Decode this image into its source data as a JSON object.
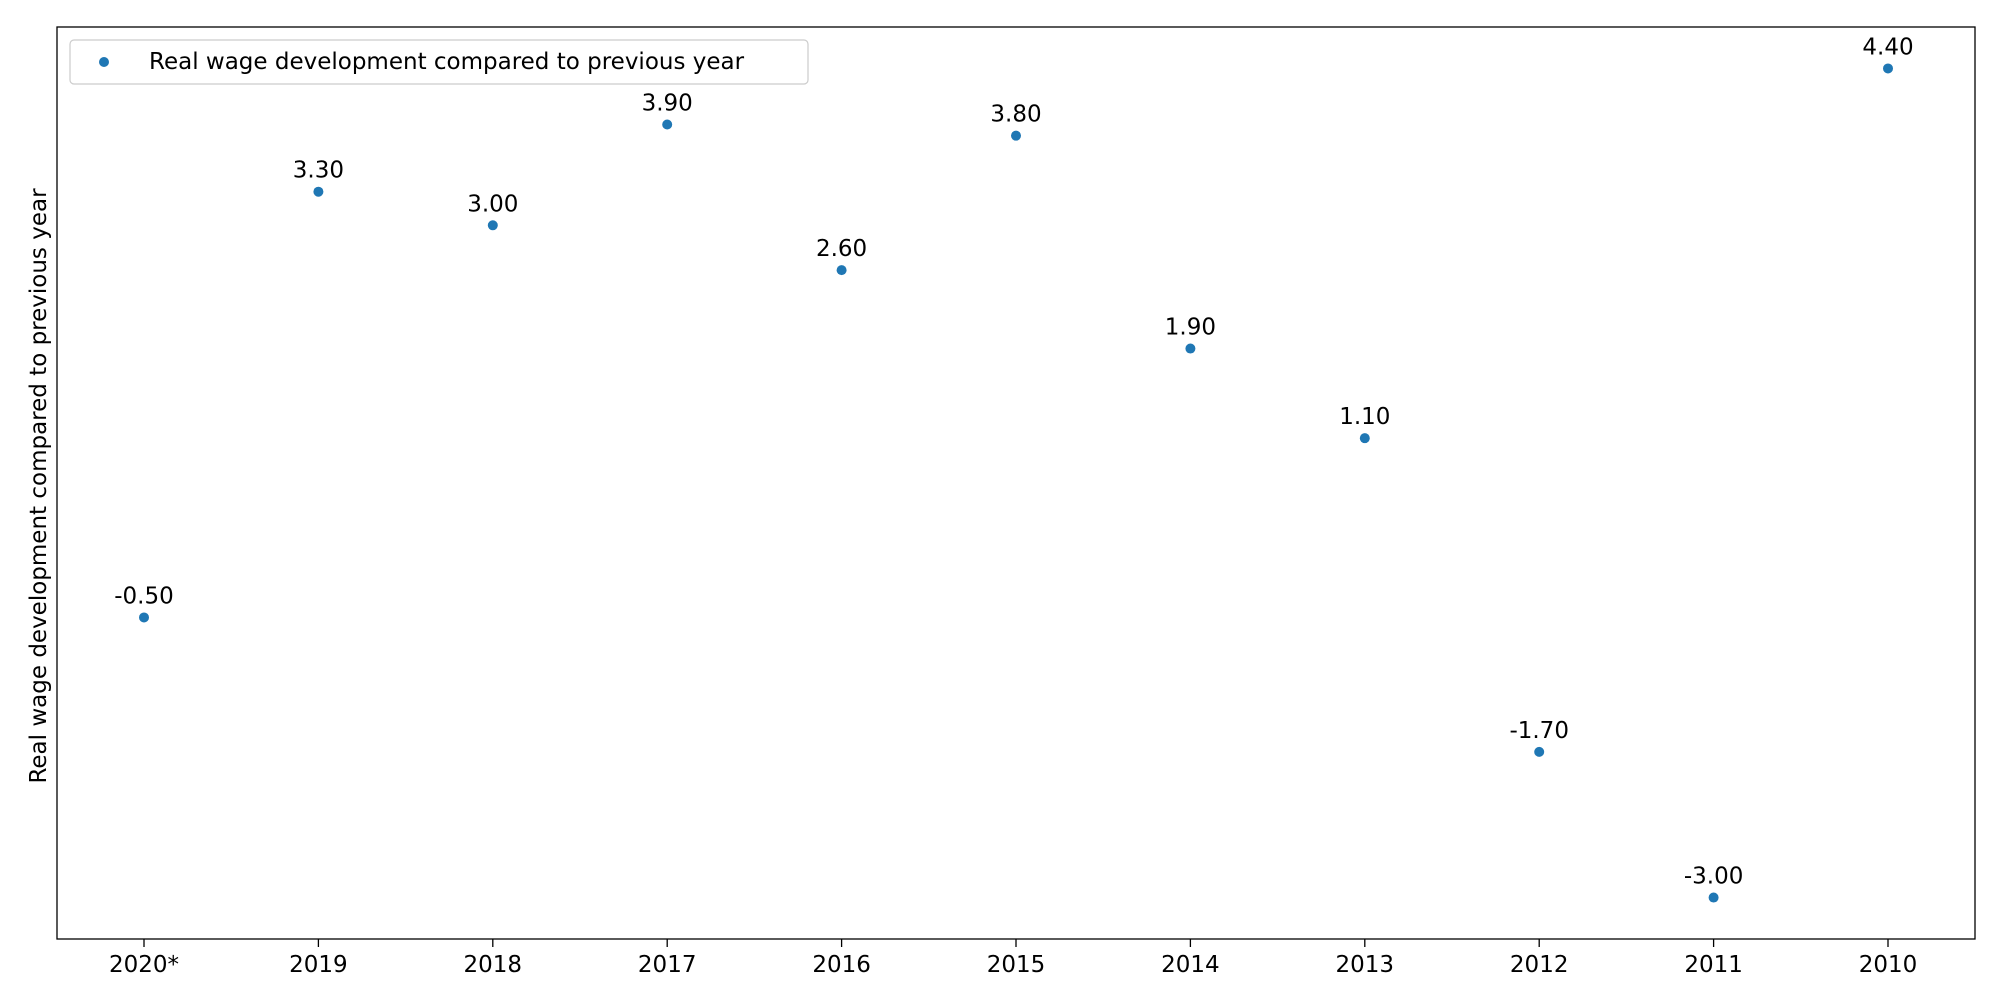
{
  "chart_data": {
    "type": "scatter",
    "title": "",
    "xlabel": "",
    "ylabel": "Real wage development compared to previous year",
    "categories": [
      "2020*",
      "2019",
      "2018",
      "2017",
      "2016",
      "2015",
      "2014",
      "2013",
      "2012",
      "2011",
      "2010"
    ],
    "series": [
      {
        "name": "Real wage development compared to previous year",
        "values": [
          -0.5,
          3.3,
          3.0,
          3.9,
          2.6,
          3.8,
          1.9,
          1.1,
          -1.7,
          -3.0,
          4.4
        ],
        "labels": [
          "-0.50",
          "3.30",
          "3.00",
          "3.90",
          "2.60",
          "3.80",
          "1.90",
          "1.10",
          "-1.70",
          "-3.00",
          "4.40"
        ],
        "color": "#1f77b4"
      }
    ],
    "ylim": [
      -3.37,
      4.77
    ],
    "y_ticks_shown": false,
    "grid": false,
    "legend_position": "top-left"
  }
}
